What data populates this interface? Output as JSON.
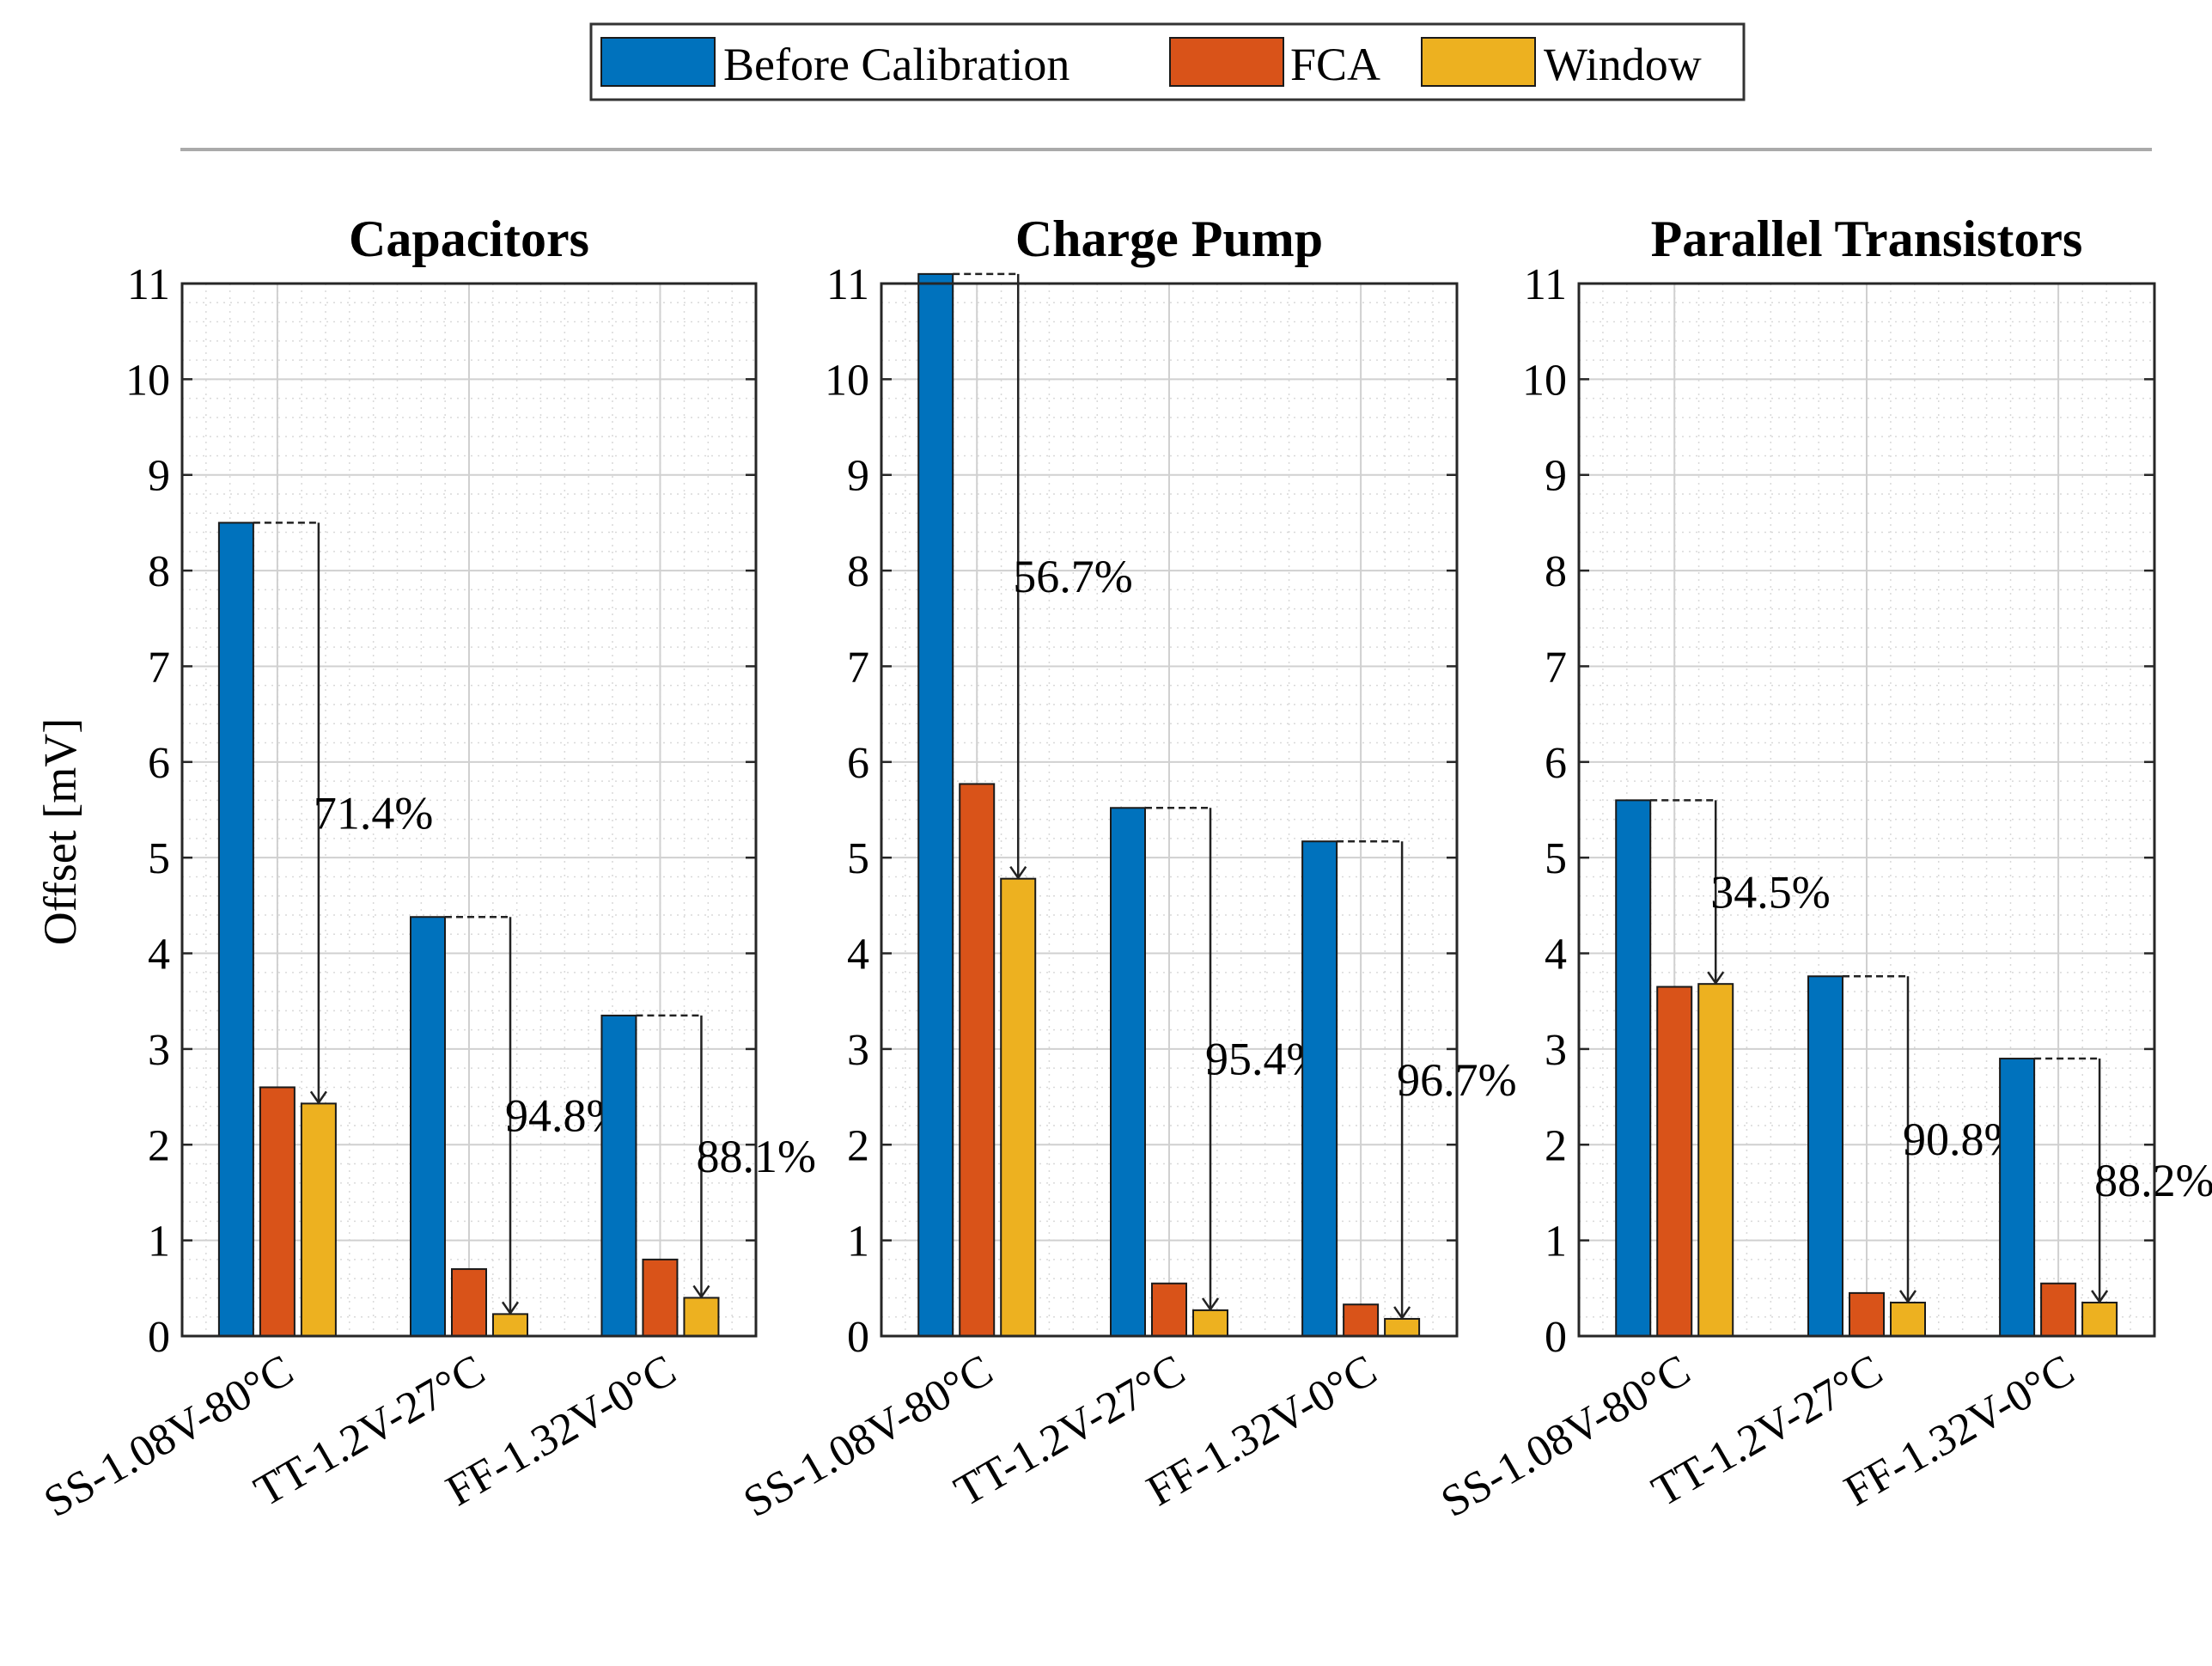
{
  "chart_data": [
    {
      "type": "bar",
      "title": "Capacitors",
      "ylabel": "Offset [mV]",
      "ylim": [
        0,
        11
      ],
      "yticks": [
        0,
        1,
        2,
        3,
        4,
        5,
        6,
        7,
        8,
        9,
        10,
        11
      ],
      "categories": [
        "SS-1.08V-80°C",
        "TT-1.2V-27°C",
        "FF-1.32V-0°C"
      ],
      "series": [
        {
          "name": "Before Calibration",
          "values": [
            8.5,
            4.38,
            3.35
          ]
        },
        {
          "name": "FCA",
          "values": [
            2.6,
            0.7,
            0.8
          ]
        },
        {
          "name": "Window",
          "values": [
            2.43,
            0.23,
            0.4
          ]
        }
      ],
      "annotations": [
        "71.4%",
        "94.8%",
        "88.1%"
      ]
    },
    {
      "type": "bar",
      "title": "Charge Pump",
      "ylim": [
        0,
        11
      ],
      "yticks": [
        0,
        1,
        2,
        3,
        4,
        5,
        6,
        7,
        8,
        9,
        10,
        11
      ],
      "categories": [
        "SS-1.08V-80°C",
        "TT-1.2V-27°C",
        "FF-1.32V-0°C"
      ],
      "series": [
        {
          "name": "Before Calibration",
          "values": [
            11.1,
            5.52,
            5.17
          ]
        },
        {
          "name": "FCA",
          "values": [
            5.77,
            0.55,
            0.33
          ]
        },
        {
          "name": "Window",
          "values": [
            4.78,
            0.27,
            0.18
          ]
        }
      ],
      "annotations": [
        "56.7%",
        "95.4%",
        "96.7%"
      ]
    },
    {
      "type": "bar",
      "title": "Parallel Transistors",
      "ylim": [
        0,
        11
      ],
      "yticks": [
        0,
        1,
        2,
        3,
        4,
        5,
        6,
        7,
        8,
        9,
        10,
        11
      ],
      "categories": [
        "SS-1.08V-80°C",
        "TT-1.2V-27°C",
        "FF-1.32V-0°C"
      ],
      "series": [
        {
          "name": "Before Calibration",
          "values": [
            5.6,
            3.76,
            2.9
          ]
        },
        {
          "name": "FCA",
          "values": [
            3.65,
            0.45,
            0.55
          ]
        },
        {
          "name": "Window",
          "values": [
            3.68,
            0.35,
            0.35
          ]
        }
      ],
      "annotations": [
        "34.5%",
        "90.8%",
        "88.2%"
      ]
    }
  ],
  "legend": {
    "entries": [
      "Before Calibration",
      "FCA",
      "Window"
    ],
    "placement": "top-center"
  },
  "colors": {
    "Before Calibration": "#0072BD",
    "FCA": "#D95319",
    "Window": "#EDB120"
  }
}
